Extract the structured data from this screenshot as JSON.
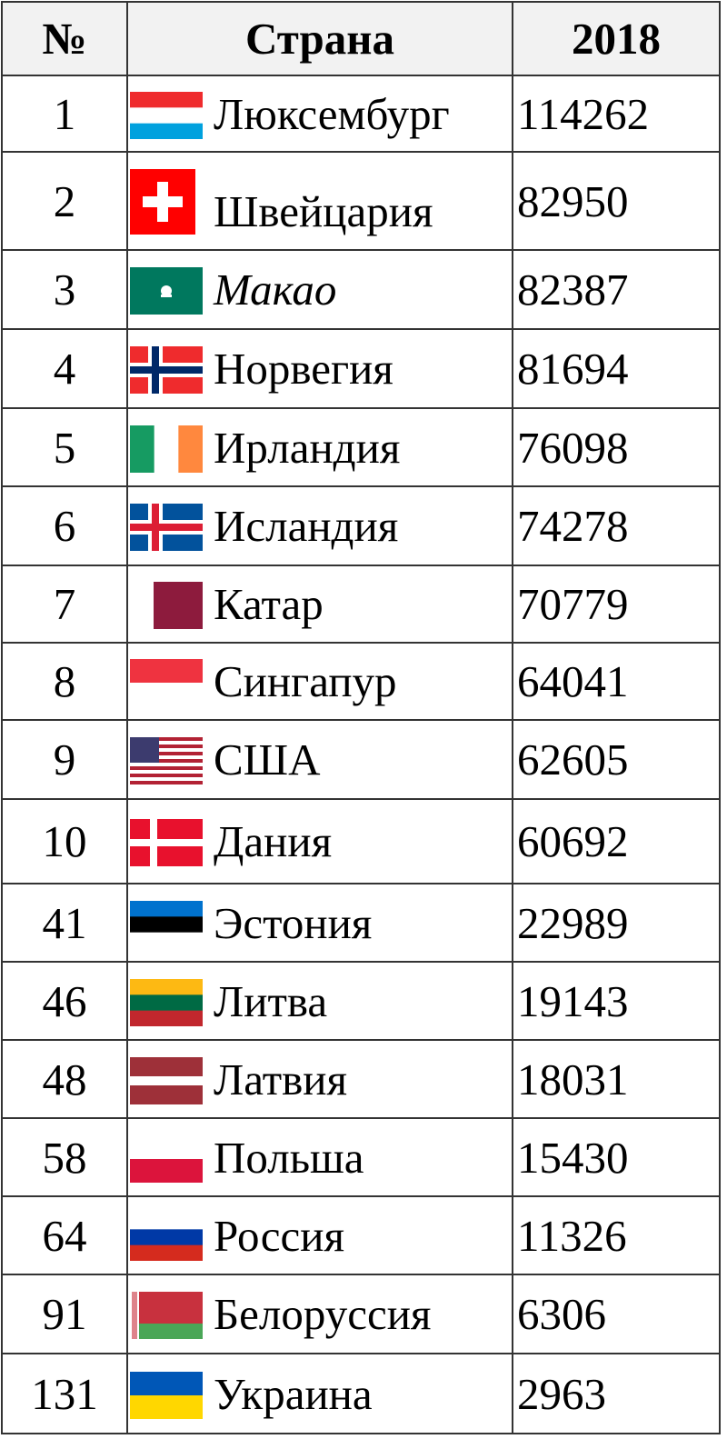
{
  "headers": {
    "rank": "№",
    "country": "Страна",
    "year": "2018"
  },
  "rows": [
    {
      "rank": "1",
      "country": "Люксембург",
      "value": "114262",
      "flag": {
        "type": "h",
        "colors": [
          "#ef2b2d",
          "#ffffff",
          "#00a1de"
        ]
      }
    },
    {
      "rank": "2",
      "country": "Швейцария",
      "value": "82950",
      "flag": {
        "type": "swiss",
        "colors": [
          "#ff0000",
          "#ffffff"
        ]
      }
    },
    {
      "rank": "3",
      "country": "Макао",
      "value": "82387",
      "italic": true,
      "flag": {
        "type": "macao",
        "colors": [
          "#00785e",
          "#ffffff"
        ]
      }
    },
    {
      "rank": "4",
      "country": "Норвегия",
      "value": "81694",
      "flag": {
        "type": "nordic2",
        "colors": [
          "#ef2b2d",
          "#ffffff",
          "#002868"
        ]
      }
    },
    {
      "rank": "5",
      "country": "Ирландия",
      "value": "76098",
      "flag": {
        "type": "v",
        "colors": [
          "#169b62",
          "#ffffff",
          "#ff883e"
        ]
      }
    },
    {
      "rank": "6",
      "country": "Исландия",
      "value": "74278",
      "flag": {
        "type": "nordic2",
        "colors": [
          "#02529c",
          "#ffffff",
          "#dc1e35"
        ]
      }
    },
    {
      "rank": "7",
      "country": "Катар",
      "value": "70779",
      "flag": {
        "type": "qatar",
        "colors": [
          "#ffffff",
          "#8d1b3d"
        ]
      }
    },
    {
      "rank": "8",
      "country": "Сингапур",
      "value": "64041",
      "flag": {
        "type": "h",
        "colors": [
          "#ef3340",
          "#ffffff"
        ]
      }
    },
    {
      "rank": "9",
      "country": "США",
      "value": "62605",
      "flag": {
        "type": "usa",
        "colors": [
          "#b22234",
          "#ffffff",
          "#3c3b6e"
        ]
      }
    },
    {
      "rank": "10",
      "country": "Дания",
      "value": "60692",
      "flag": {
        "type": "nordic1",
        "colors": [
          "#e8112d",
          "#ffffff"
        ]
      }
    },
    {
      "rank": "41",
      "country": "Эстония",
      "value": "22989",
      "flag": {
        "type": "h",
        "colors": [
          "#0072ce",
          "#000000",
          "#ffffff"
        ]
      }
    },
    {
      "rank": "46",
      "country": "Литва",
      "value": "19143",
      "flag": {
        "type": "h",
        "colors": [
          "#fdb913",
          "#006a44",
          "#c1272d"
        ]
      }
    },
    {
      "rank": "48",
      "country": "Латвия",
      "value": "18031",
      "flag": {
        "type": "latvia",
        "colors": [
          "#9e3039",
          "#ffffff"
        ]
      }
    },
    {
      "rank": "58",
      "country": "Польша",
      "value": "15430",
      "flag": {
        "type": "h",
        "colors": [
          "#ffffff",
          "#dc143c"
        ]
      }
    },
    {
      "rank": "64",
      "country": "Россия",
      "value": "11326",
      "flag": {
        "type": "h",
        "colors": [
          "#ffffff",
          "#0039a6",
          "#d52b1e"
        ]
      }
    },
    {
      "rank": "91",
      "country": "Белоруссия",
      "value": "6306",
      "flag": {
        "type": "belarus",
        "colors": [
          "#c8313e",
          "#4aa657",
          "#ffffff"
        ]
      }
    },
    {
      "rank": "131",
      "country": "Украина",
      "value": "2963",
      "flag": {
        "type": "h",
        "colors": [
          "#0057b7",
          "#ffd700"
        ]
      }
    }
  ]
}
